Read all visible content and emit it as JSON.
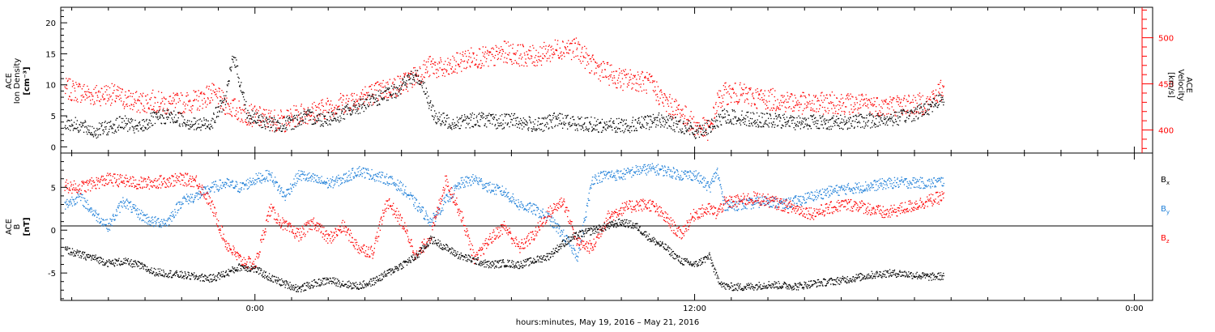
{
  "chart_data": [
    {
      "type": "scatter",
      "panel": "top",
      "ylabel_left": [
        "ACE",
        "Ion Density",
        "[cm⁻³]"
      ],
      "ylabel_right": [
        "ACE",
        "Velocity",
        "[km/s]"
      ],
      "x_ticks": [
        "0:00",
        "12:00",
        "0:00"
      ],
      "x_range_hours": [
        -5.3,
        24.5
      ],
      "y_left_ticks": [
        "0",
        "5",
        "10",
        "15",
        "20"
      ],
      "y_left_range": [
        -1,
        22.5
      ],
      "y_right_ticks": [
        "400",
        "450",
        "500"
      ],
      "y_right_range": [
        375,
        533
      ],
      "colors": {
        "density": "#000000",
        "velocity": "#ff0000"
      },
      "series": [
        {
          "name": "",
          "axis": "left",
          "color": "#000000",
          "x": [
            -5.2,
            -4.8,
            -4.4,
            -4.0,
            -3.6,
            -3.2,
            -2.8,
            -2.4,
            -2.0,
            -1.6,
            -1.2,
            -0.8,
            -0.6,
            -0.4,
            -0.2,
            0.0,
            0.3,
            0.6,
            1.0,
            1.4,
            1.8,
            2.2,
            2.6,
            3.0,
            3.4,
            3.8,
            4.0,
            4.2,
            4.4,
            4.6,
            4.8,
            5.0,
            5.4,
            5.8,
            6.2,
            6.6,
            7.0,
            7.4,
            7.8,
            8.2,
            8.6,
            9.0,
            9.4,
            9.8,
            10.2,
            10.6,
            11.0,
            11.4,
            11.8,
            12.0,
            12.2,
            12.4,
            12.6,
            12.8,
            13.2,
            13.6,
            14.0,
            14.4,
            14.8,
            15.2,
            15.6,
            16.0,
            16.4,
            16.8,
            17.2,
            17.6,
            18.0,
            18.4,
            18.6,
            18.8
          ],
          "y": [
            4,
            3.5,
            2.5,
            3.2,
            4,
            3,
            4.5,
            5,
            4.5,
            3.5,
            4,
            8,
            15,
            10,
            5,
            4.5,
            4,
            3.5,
            4,
            5,
            4.5,
            5,
            6,
            7,
            8,
            9,
            10,
            11,
            11.5,
            10,
            6,
            4.5,
            4,
            4.3,
            4.6,
            4,
            4.5,
            3.8,
            3.5,
            4.5,
            4,
            3.8,
            3.5,
            3.5,
            3.6,
            3.8,
            4.5,
            3.8,
            3.2,
            2.5,
            3,
            3.2,
            4,
            5,
            4.8,
            4.5,
            4.3,
            4.2,
            4,
            4.2,
            4,
            4,
            4.2,
            4.3,
            4.5,
            4.8,
            5.5,
            6.5,
            7.5,
            7.8
          ]
        },
        {
          "name": "",
          "axis": "right",
          "color": "#ff0000",
          "x": [
            -5.2,
            -4.8,
            -4.4,
            -4.0,
            -3.6,
            -3.2,
            -2.8,
            -2.4,
            -2.0,
            -1.6,
            -1.2,
            -0.8,
            -0.4,
            0.0,
            0.4,
            0.8,
            1.2,
            1.6,
            2.0,
            2.4,
            2.8,
            3.2,
            3.6,
            4.0,
            4.4,
            4.8,
            5.2,
            5.6,
            6.0,
            6.4,
            6.8,
            7.2,
            7.6,
            8.0,
            8.4,
            8.8,
            9.2,
            9.6,
            10.0,
            10.4,
            10.8,
            11.2,
            11.6,
            12.0,
            12.4,
            12.6,
            12.8,
            13.2,
            13.6,
            14.0,
            14.4,
            14.8,
            15.2,
            15.6,
            16.0,
            16.4,
            16.8,
            17.2,
            17.6,
            18.0,
            18.4,
            18.6,
            18.8
          ],
          "y": [
            445,
            442,
            438,
            440,
            435,
            430,
            432,
            428,
            430,
            432,
            440,
            428,
            420,
            415,
            412,
            410,
            418,
            420,
            425,
            430,
            435,
            440,
            445,
            450,
            460,
            470,
            465,
            475,
            480,
            478,
            485,
            482,
            480,
            485,
            490,
            488,
            470,
            462,
            455,
            455,
            450,
            430,
            420,
            405,
            400,
            430,
            440,
            440,
            436,
            434,
            432,
            430,
            428,
            430,
            430,
            428,
            428,
            426,
            428,
            428,
            430,
            440,
            445
          ]
        }
      ]
    },
    {
      "type": "scatter",
      "panel": "bottom",
      "ylabel_left": [
        "ACE",
        "B",
        "[nT]"
      ],
      "x_ticks": [
        "0:00",
        "12:00",
        "0:00"
      ],
      "x_range_hours": [
        -5.3,
        24.5
      ],
      "y_ticks": [
        "-5",
        "0",
        "5"
      ],
      "y_range": [
        -8.2,
        9
      ],
      "zero_line": true,
      "legend": {
        "placement": "right",
        "labels": [
          "B",
          "B",
          "B"
        ],
        "subscripts": [
          "x",
          "y",
          "z"
        ]
      },
      "colors": {
        "Bx": "#000000",
        "By": "#1e7fd8",
        "Bz": "#ff0000"
      },
      "series": [
        {
          "name": "B_x",
          "color": "#000000",
          "x": [
            -5.2,
            -4.8,
            -4.4,
            -4.0,
            -3.6,
            -3.2,
            -2.8,
            -2.4,
            -2.0,
            -1.6,
            -1.2,
            -0.8,
            -0.4,
            0.0,
            0.4,
            0.8,
            1.2,
            1.6,
            2.0,
            2.4,
            2.8,
            3.2,
            3.6,
            4.0,
            4.4,
            4.8,
            5.2,
            5.6,
            6.0,
            6.4,
            6.8,
            7.2,
            7.6,
            8.0,
            8.4,
            8.8,
            9.2,
            9.6,
            10.0,
            10.4,
            10.8,
            11.2,
            11.6,
            12.0,
            12.4,
            12.6,
            12.8,
            13.2,
            13.6,
            14.0,
            14.4,
            14.8,
            15.2,
            15.6,
            16.0,
            16.4,
            16.8,
            17.2,
            17.6,
            18.0,
            18.4,
            18.8
          ],
          "y": [
            -2.2,
            -2.8,
            -3.2,
            -3.8,
            -3.6,
            -4.0,
            -4.8,
            -5.0,
            -5.2,
            -5.4,
            -5.6,
            -5.0,
            -4.2,
            -4.5,
            -5.5,
            -6.2,
            -6.8,
            -6.2,
            -5.8,
            -6.2,
            -6.5,
            -6.0,
            -5.0,
            -4.0,
            -3.0,
            -1.0,
            -2.0,
            -3.0,
            -3.5,
            -4.0,
            -3.8,
            -4.0,
            -3.5,
            -3.0,
            -1.5,
            -0.5,
            0,
            0.5,
            1.0,
            0.5,
            -1.0,
            -2.0,
            -3.5,
            -4.0,
            -3.0,
            -5.5,
            -6.5,
            -6.6,
            -6.5,
            -6.3,
            -6.4,
            -6.5,
            -6.2,
            -6.0,
            -5.8,
            -5.5,
            -5.2,
            -5.0,
            -5.0,
            -5.2,
            -5.4,
            -5.3
          ]
        },
        {
          "name": "B_y",
          "color": "#1e7fd8",
          "x": [
            -5.2,
            -4.8,
            -4.4,
            -4.0,
            -3.6,
            -3.2,
            -2.8,
            -2.4,
            -2.0,
            -1.6,
            -1.2,
            -0.8,
            -0.4,
            0.0,
            0.4,
            0.8,
            1.2,
            1.6,
            2.0,
            2.4,
            2.8,
            3.2,
            3.6,
            4.0,
            4.4,
            4.8,
            5.2,
            5.6,
            6.0,
            6.4,
            6.8,
            7.2,
            7.6,
            8.0,
            8.4,
            8.8,
            9.2,
            9.6,
            10.0,
            10.4,
            10.8,
            11.2,
            11.6,
            12.0,
            12.4,
            12.6,
            12.8,
            13.2,
            13.6,
            14.0,
            14.4,
            14.8,
            15.2,
            15.6,
            16.0,
            16.4,
            16.8,
            17.2,
            17.6,
            18.0,
            18.4,
            18.8
          ],
          "y": [
            3.0,
            4.0,
            2.0,
            0.5,
            3.5,
            2.0,
            1.0,
            1.0,
            3.5,
            4.0,
            5.0,
            5.5,
            5.0,
            6.0,
            6.5,
            4.0,
            6.5,
            6.0,
            5.5,
            6.0,
            7.0,
            6.5,
            6.0,
            5.0,
            3.0,
            1.0,
            3.5,
            5.5,
            6.0,
            5.0,
            4.5,
            3.0,
            2.5,
            1.5,
            -0.5,
            -3.0,
            6.0,
            6.5,
            6.5,
            7.0,
            7.2,
            7.0,
            6.5,
            6.5,
            5.0,
            7.0,
            3.0,
            3.0,
            3.2,
            3.5,
            3.0,
            3.5,
            4.0,
            4.5,
            4.8,
            5.0,
            5.2,
            5.5,
            5.6,
            5.6,
            5.5,
            5.8
          ]
        },
        {
          "name": "B_z",
          "color": "#ff0000",
          "x": [
            -5.2,
            -4.8,
            -4.4,
            -4.0,
            -3.6,
            -3.2,
            -2.8,
            -2.4,
            -2.0,
            -1.6,
            -1.2,
            -0.8,
            -0.4,
            0.0,
            0.4,
            0.8,
            1.2,
            1.6,
            2.0,
            2.4,
            2.8,
            3.2,
            3.6,
            4.0,
            4.4,
            4.8,
            5.2,
            5.6,
            6.0,
            6.4,
            6.8,
            7.2,
            7.6,
            8.0,
            8.4,
            8.8,
            9.2,
            9.6,
            10.0,
            10.4,
            10.8,
            11.2,
            11.6,
            12.0,
            12.4,
            12.6,
            12.8,
            13.2,
            13.6,
            14.0,
            14.4,
            14.8,
            15.2,
            15.6,
            16.0,
            16.4,
            16.8,
            17.2,
            17.6,
            18.0,
            18.4,
            18.8
          ],
          "y": [
            5.2,
            5.0,
            5.5,
            6.0,
            5.8,
            5.5,
            5.6,
            5.8,
            6.0,
            5.8,
            3.0,
            -1.5,
            -3.5,
            -4.0,
            2.5,
            0.5,
            -0.5,
            1.0,
            -1.0,
            0.5,
            -2.0,
            -2.5,
            3.5,
            1.0,
            -3.0,
            -0.5,
            6.0,
            2.0,
            -3.5,
            -1.0,
            0.5,
            -2.0,
            -0.5,
            2.0,
            3.5,
            -1.5,
            -2.0,
            1.5,
            2.5,
            3.0,
            3.0,
            1.5,
            -0.5,
            2.0,
            2.5,
            2.0,
            3.2,
            3.5,
            3.8,
            3.5,
            3.0,
            2.5,
            2.0,
            2.5,
            3.0,
            3.0,
            2.5,
            2.0,
            2.5,
            3.0,
            3.5,
            4.0
          ]
        }
      ]
    }
  ],
  "x_axis_label": "hours:minutes, May 19, 2016 – May 21, 2016"
}
